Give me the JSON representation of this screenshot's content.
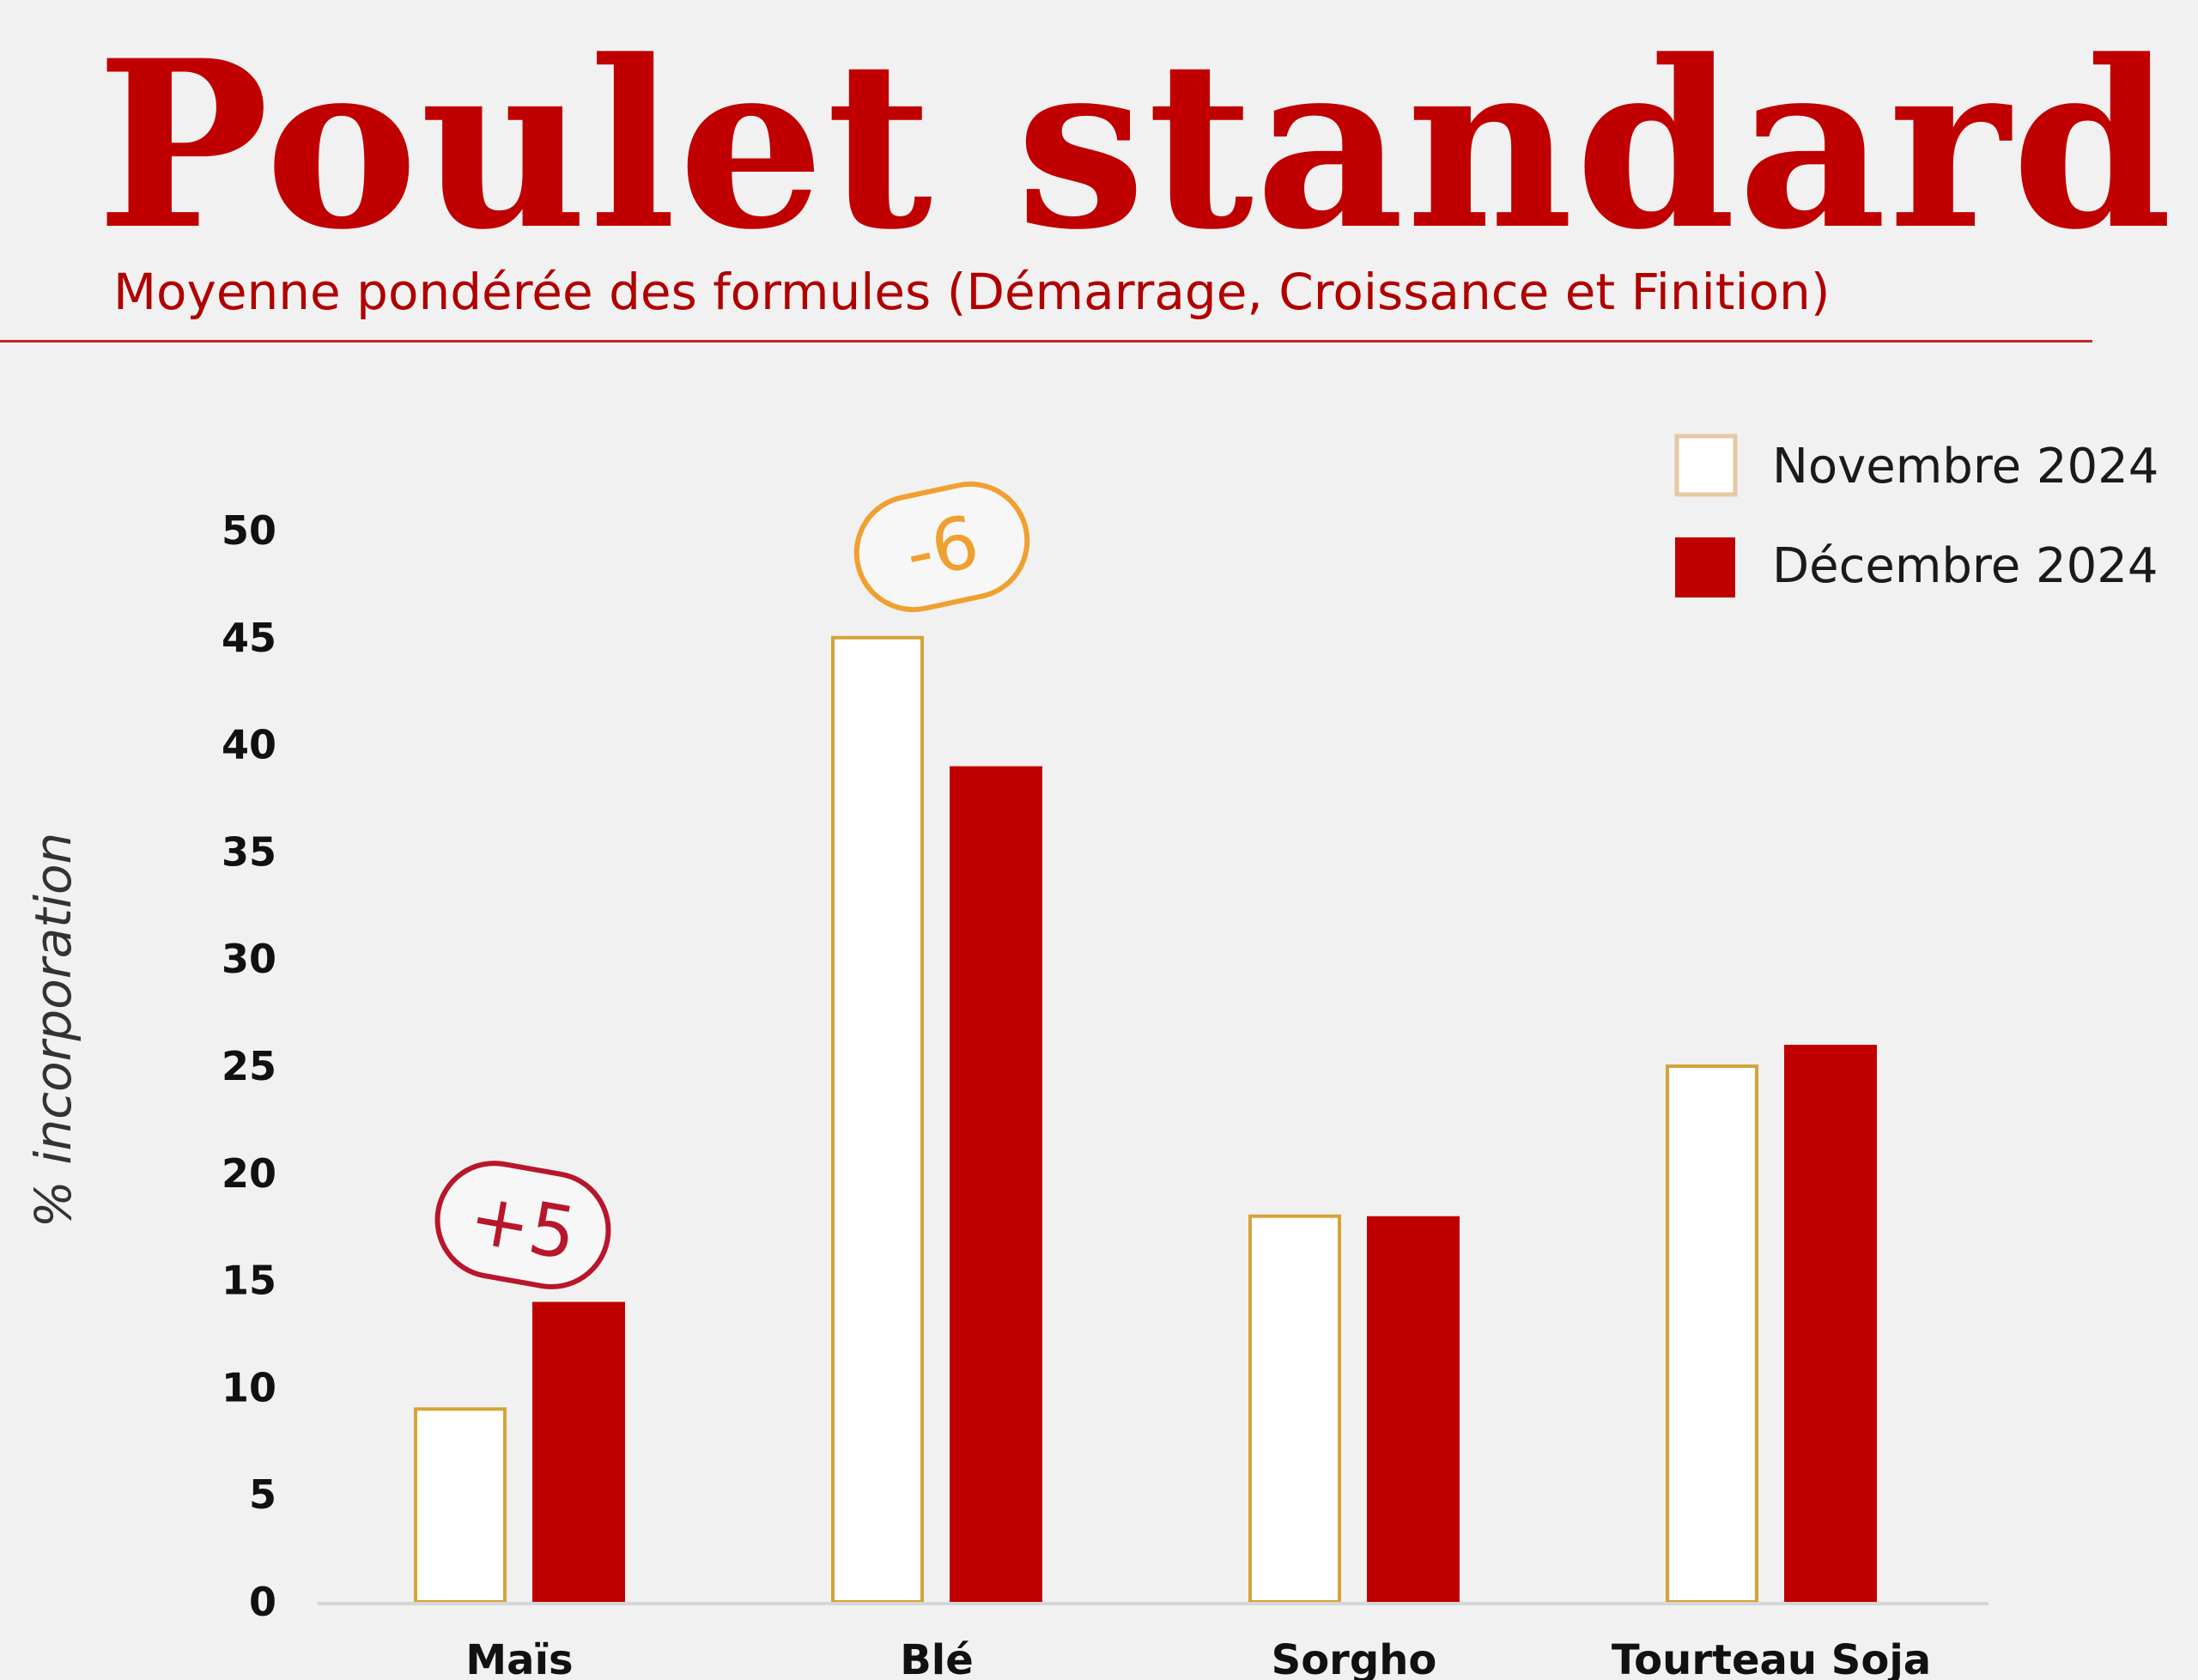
{
  "header": {
    "title": "Poulet standard",
    "subtitle": "Moyenne pondérée des formules (Démarrage, Croissance et Finition)"
  },
  "colors": {
    "primary_red": "#c00000",
    "nov_outline": "#d4a437",
    "badge_positive": "#b8162b",
    "badge_negative": "#f0a030",
    "legend_nov_outline": "#e6c9a3"
  },
  "chart_data": {
    "type": "bar",
    "title": "Poulet standard",
    "subtitle": "Moyenne pondérée des formules (Démarrage, Croissance et Finition)",
    "ylabel": "% incorporation",
    "xlabel": "",
    "ylim": [
      0,
      50
    ],
    "yticks": [
      0,
      5,
      10,
      15,
      20,
      25,
      30,
      35,
      40,
      45,
      50
    ],
    "grid": false,
    "legend_position": "top-right",
    "categories": [
      "Maïs",
      "Blé",
      "Sorgho",
      "Tourteau Soja"
    ],
    "series": [
      {
        "name": "Novembre 2024",
        "style": "outline",
        "values": [
          9,
          45,
          18,
          25
        ]
      },
      {
        "name": "Décembre 2024",
        "style": "filled",
        "values": [
          14,
          39,
          18,
          26
        ]
      }
    ],
    "annotations": [
      {
        "category": "Maïs",
        "label": "+5"
      },
      {
        "category": "Blé",
        "label": "-6"
      }
    ]
  }
}
